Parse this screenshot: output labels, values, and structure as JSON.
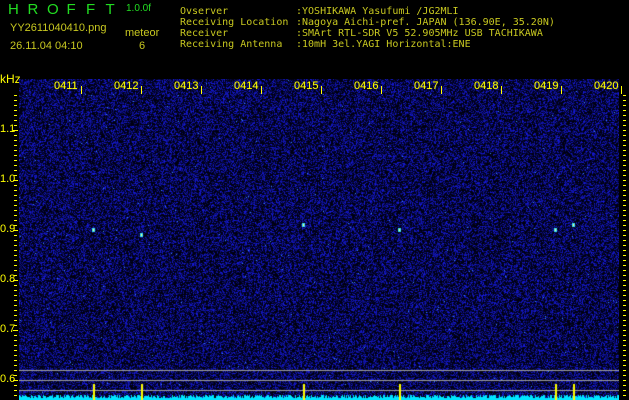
{
  "header": {
    "app_title": "HROFFT",
    "version": "1.0.0f",
    "filename": "YY2611040410.png",
    "datetime": "26.11.04 04:10",
    "meteor_label": "meteor",
    "meteor_count": "6"
  },
  "info": [
    {
      "key": "Ovserver",
      "value": ":YOSHIKAWA Yasufumi /JG2MLI"
    },
    {
      "key": "Receiving Location",
      "value": ":Nagoya Aichi-pref. JAPAN (136.90E, 35.20N)"
    },
    {
      "key": "Receiver",
      "value": ":SMArt RTL-SDR V5 52.905MHz USB TACHIKAWA"
    },
    {
      "key": "Receiving Antenna",
      "value": ":10mH 3el.YAGI Horizontal:ENE"
    }
  ],
  "chart_data": {
    "type": "heatmap",
    "ylabel": "kHz",
    "x_ticks": [
      "0411",
      "0412",
      "0413",
      "0414",
      "0415",
      "0416",
      "0417",
      "0418",
      "0419",
      "0420"
    ],
    "y_ticks": [
      "1.1",
      "1.0",
      "0.9",
      "0.8",
      "0.7",
      "0.6"
    ],
    "ylim": [
      0.56,
      1.18
    ],
    "colors": {
      "background": "#000010",
      "noise": "#1a22cc",
      "echo": "#33ddff",
      "power_strip": "#00e5ff",
      "axis": "#ffff00",
      "reference_lines": "#a0a0a0"
    },
    "reference_lines_khz": [
      0.62,
      0.6,
      0.58
    ],
    "meteors": [
      {
        "time": "04:11.2",
        "khz": 0.9
      },
      {
        "time": "04:12.0",
        "khz": 0.89
      },
      {
        "time": "04:14.7",
        "khz": 0.91
      },
      {
        "time": "04:16.3",
        "khz": 0.9
      },
      {
        "time": "04:18.9",
        "khz": 0.9
      },
      {
        "time": "04:19.2",
        "khz": 0.91
      }
    ]
  }
}
